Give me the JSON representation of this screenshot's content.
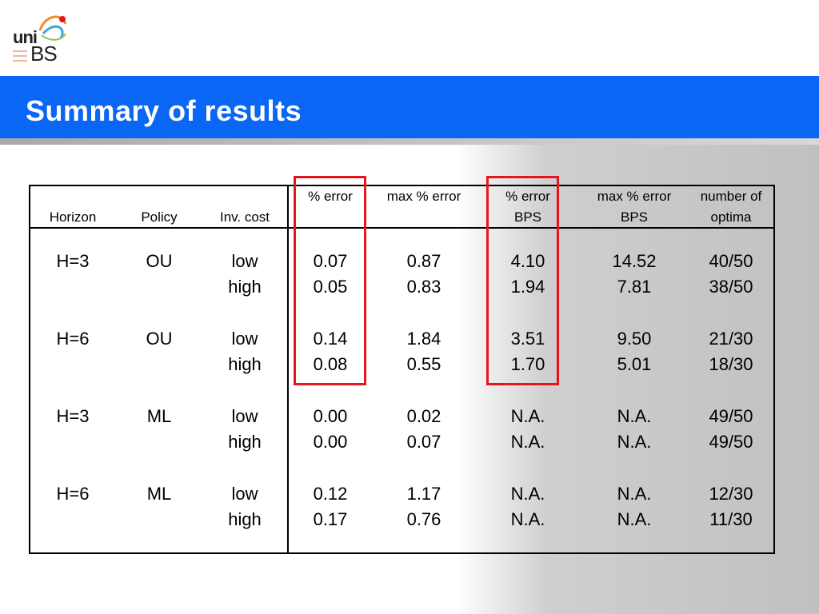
{
  "header": {
    "logo_text_top": "uni",
    "logo_text_bottom": "BS",
    "title": "Summary of results"
  },
  "table": {
    "columns": [
      {
        "line1": "",
        "line2": "Horizon"
      },
      {
        "line1": "",
        "line2": "Policy"
      },
      {
        "line1": "",
        "line2": "Inv. cost"
      },
      {
        "line1": "% error",
        "line2": ""
      },
      {
        "line1": "max % error",
        "line2": ""
      },
      {
        "line1": "% error",
        "line2": "BPS"
      },
      {
        "line1": "max % error",
        "line2": "BPS"
      },
      {
        "line1": "number of",
        "line2": "optima"
      }
    ],
    "rows": [
      [
        "H=3",
        "OU",
        "low",
        "0.07",
        "0.87",
        "4.10",
        "14.52",
        "40/50"
      ],
      [
        "",
        "",
        "high",
        "0.05",
        "0.83",
        "1.94",
        "7.81",
        "38/50"
      ],
      [
        "H=6",
        "OU",
        "low",
        "0.14",
        "1.84",
        "3.51",
        "9.50",
        "21/30"
      ],
      [
        "",
        "",
        "high",
        "0.08",
        "0.55",
        "1.70",
        "5.01",
        "18/30"
      ],
      [
        "H=3",
        "ML",
        "low",
        "0.00",
        "0.02",
        "N.A.",
        "N.A.",
        "49/50"
      ],
      [
        "",
        "",
        "high",
        "0.00",
        "0.07",
        "N.A.",
        "N.A.",
        "49/50"
      ],
      [
        "H=6",
        "ML",
        "low",
        "0.12",
        "1.17",
        "N.A.",
        "N.A.",
        "12/30"
      ],
      [
        "",
        "",
        "high",
        "0.17",
        "0.76",
        "N.A.",
        "N.A.",
        "11/30"
      ]
    ]
  },
  "colors": {
    "title_bar": "#0a66f5",
    "highlight_box": "#e8141b"
  }
}
